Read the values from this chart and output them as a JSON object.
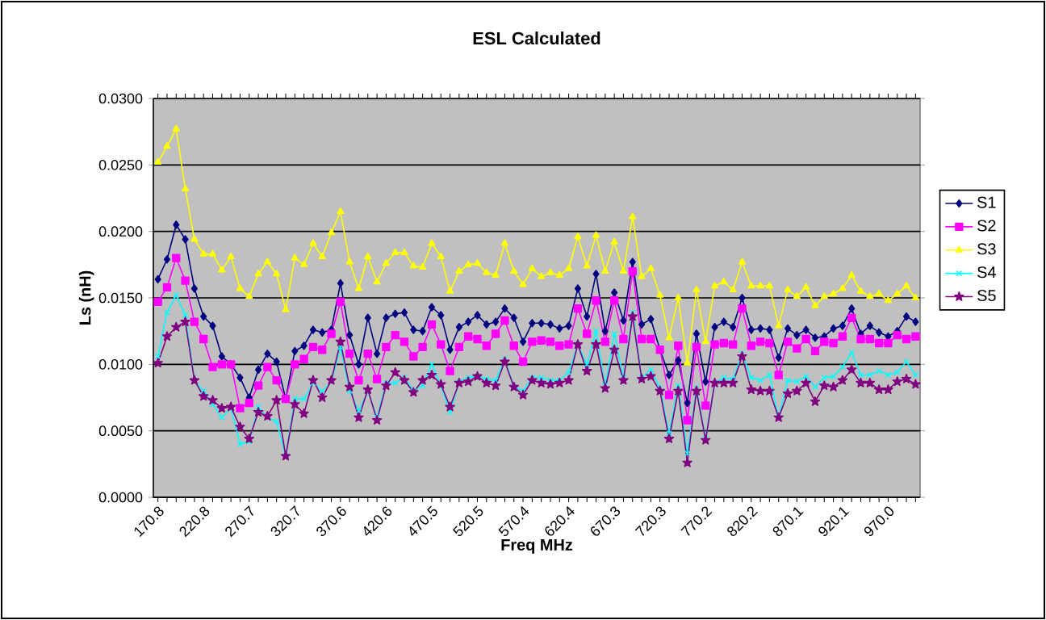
{
  "chart_data": {
    "type": "line",
    "title": "ESL Calculated",
    "xlabel": "Freq MHz",
    "ylabel": "Ls (nH)",
    "categories": [
      "170.8",
      null,
      null,
      null,
      null,
      "220.8",
      null,
      null,
      null,
      null,
      "270.7",
      null,
      null,
      null,
      null,
      "320.7",
      null,
      null,
      null,
      null,
      "370.6",
      null,
      null,
      null,
      null,
      "420.6",
      null,
      null,
      null,
      null,
      "470.5",
      null,
      null,
      null,
      null,
      "520.5",
      null,
      null,
      null,
      null,
      "570.4",
      null,
      null,
      null,
      null,
      "620.4",
      null,
      null,
      null,
      null,
      "670.3",
      null,
      null,
      null,
      null,
      "720.3",
      null,
      null,
      null,
      null,
      "770.2",
      null,
      null,
      null,
      null,
      "820.2",
      null,
      null,
      null,
      null,
      "870.1",
      null,
      null,
      null,
      null,
      "920.1",
      null,
      null,
      null,
      null,
      "970.0",
      null,
      null,
      null
    ],
    "ylim": [
      0,
      0.03
    ],
    "yticks": [
      {
        "value": 0,
        "label": "0.0000"
      },
      {
        "value": 0.005,
        "label": "0.0050"
      },
      {
        "value": 0.01,
        "label": "0.0100"
      },
      {
        "value": 0.015,
        "label": "0.0150"
      },
      {
        "value": 0.02,
        "label": "0.0200"
      },
      {
        "value": 0.025,
        "label": "0.0250"
      },
      {
        "value": 0.03,
        "label": "0.0300"
      }
    ],
    "grid": "y",
    "legend": "right",
    "series": [
      {
        "name": "S1",
        "color": "#000080",
        "marker": "diamond",
        "values": [
          0.0164,
          0.0179,
          0.0205,
          0.0194,
          0.0157,
          0.0136,
          0.0129,
          0.0106,
          0.01,
          0.009,
          0.0075,
          0.0096,
          0.0108,
          0.0102,
          0.0074,
          0.011,
          0.0114,
          0.0126,
          0.0124,
          0.0126,
          0.0161,
          0.0122,
          0.01,
          0.0135,
          0.0108,
          0.0135,
          0.0138,
          0.0139,
          0.0126,
          0.0125,
          0.0143,
          0.0137,
          0.0111,
          0.0128,
          0.0132,
          0.0137,
          0.013,
          0.0132,
          0.0142,
          0.0135,
          0.0117,
          0.0131,
          0.0131,
          0.013,
          0.0127,
          0.0129,
          0.0157,
          0.0136,
          0.0168,
          0.0125,
          0.0154,
          0.0133,
          0.0177,
          0.013,
          0.0134,
          0.0111,
          0.0092,
          0.0103,
          0.0071,
          0.0123,
          0.0087,
          0.0128,
          0.0132,
          0.0128,
          0.015,
          0.0126,
          0.0127,
          0.0126,
          0.0105,
          0.0127,
          0.0122,
          0.0126,
          0.012,
          0.0121,
          0.0127,
          0.0129,
          0.0142,
          0.0123,
          0.0129,
          0.0124,
          0.0121,
          0.0125,
          0.0136,
          0.0132
        ]
      },
      {
        "name": "S2",
        "color": "#ff00ff",
        "marker": "square",
        "values": [
          0.0147,
          0.0158,
          0.018,
          0.0163,
          0.0132,
          0.0119,
          0.0098,
          0.01,
          0.01,
          0.0067,
          0.0071,
          0.0084,
          0.0098,
          0.0088,
          0.0074,
          0.01,
          0.0104,
          0.0113,
          0.0111,
          0.0123,
          0.0147,
          0.0108,
          0.0088,
          0.0108,
          0.0089,
          0.0113,
          0.0122,
          0.0117,
          0.0106,
          0.0113,
          0.013,
          0.0115,
          0.0095,
          0.0113,
          0.0121,
          0.0119,
          0.0114,
          0.0123,
          0.0133,
          0.0114,
          0.0102,
          0.0117,
          0.0118,
          0.0117,
          0.0114,
          0.0115,
          0.0142,
          0.0123,
          0.0148,
          0.0117,
          0.0148,
          0.0119,
          0.017,
          0.0119,
          0.0119,
          0.0111,
          0.0077,
          0.0114,
          0.0058,
          0.0113,
          0.0069,
          0.0115,
          0.0116,
          0.0115,
          0.0142,
          0.0114,
          0.0117,
          0.0116,
          0.0092,
          0.0117,
          0.0112,
          0.0119,
          0.011,
          0.0117,
          0.0116,
          0.0121,
          0.0135,
          0.0119,
          0.0119,
          0.0116,
          0.0116,
          0.0122,
          0.0119,
          0.0121
        ]
      },
      {
        "name": "S3",
        "color": "#ffff00",
        "marker": "triangle",
        "values": [
          0.0252,
          0.0264,
          0.0277,
          0.0232,
          0.0194,
          0.0183,
          0.0183,
          0.0171,
          0.0181,
          0.0157,
          0.0151,
          0.0168,
          0.0177,
          0.0168,
          0.0141,
          0.018,
          0.0175,
          0.0191,
          0.0181,
          0.0199,
          0.0215,
          0.0177,
          0.0157,
          0.0181,
          0.0162,
          0.0176,
          0.0184,
          0.0184,
          0.0174,
          0.0173,
          0.0191,
          0.0181,
          0.0155,
          0.017,
          0.0175,
          0.0176,
          0.0169,
          0.0167,
          0.0191,
          0.017,
          0.016,
          0.0172,
          0.0166,
          0.0169,
          0.0167,
          0.0172,
          0.0196,
          0.0174,
          0.0197,
          0.017,
          0.0192,
          0.017,
          0.0211,
          0.0166,
          0.0172,
          0.0152,
          0.012,
          0.015,
          0.0101,
          0.0156,
          0.0117,
          0.0159,
          0.0162,
          0.0156,
          0.0177,
          0.0159,
          0.0159,
          0.0159,
          0.0129,
          0.0156,
          0.0151,
          0.0158,
          0.0144,
          0.0151,
          0.0153,
          0.0157,
          0.0167,
          0.0155,
          0.0151,
          0.0153,
          0.0148,
          0.0153,
          0.0159,
          0.015
        ]
      },
      {
        "name": "S4",
        "color": "#00ffff",
        "marker": "cross",
        "values": [
          0.0106,
          0.0139,
          0.0152,
          0.0137,
          0.0088,
          0.008,
          0.007,
          0.006,
          0.0067,
          0.004,
          0.0042,
          0.0068,
          0.006,
          0.0057,
          0.0031,
          0.0074,
          0.0074,
          0.0086,
          0.008,
          0.0087,
          0.0113,
          0.008,
          0.0065,
          0.008,
          0.006,
          0.0086,
          0.0086,
          0.009,
          0.008,
          0.0084,
          0.01,
          0.0084,
          0.0064,
          0.0087,
          0.009,
          0.0091,
          0.0089,
          0.0088,
          0.0104,
          0.0083,
          0.008,
          0.009,
          0.009,
          0.0088,
          0.0088,
          0.0094,
          0.0115,
          0.01,
          0.0125,
          0.0084,
          0.0123,
          0.009,
          0.0139,
          0.009,
          0.0096,
          0.0082,
          0.0048,
          0.0084,
          0.0033,
          0.0082,
          0.0044,
          0.0086,
          0.009,
          0.0089,
          0.0108,
          0.009,
          0.0088,
          0.0092,
          0.006,
          0.0088,
          0.0087,
          0.0091,
          0.0083,
          0.009,
          0.0091,
          0.0098,
          0.0109,
          0.0092,
          0.0092,
          0.0095,
          0.0092,
          0.0094,
          0.0102,
          0.0092
        ]
      },
      {
        "name": "S5",
        "color": "#800080",
        "marker": "star",
        "values": [
          0.0101,
          0.0121,
          0.0128,
          0.0132,
          0.0088,
          0.0076,
          0.0073,
          0.0067,
          0.0068,
          0.0053,
          0.0044,
          0.0064,
          0.0061,
          0.0073,
          0.0031,
          0.007,
          0.0063,
          0.0088,
          0.0075,
          0.0088,
          0.0117,
          0.0083,
          0.006,
          0.0081,
          0.0058,
          0.0084,
          0.0094,
          0.0088,
          0.0079,
          0.0088,
          0.0092,
          0.0085,
          0.0068,
          0.0086,
          0.0087,
          0.0091,
          0.0086,
          0.0084,
          0.0102,
          0.0083,
          0.0077,
          0.0088,
          0.0086,
          0.0085,
          0.0086,
          0.0088,
          0.0115,
          0.0095,
          0.0115,
          0.0082,
          0.0111,
          0.0088,
          0.0136,
          0.0089,
          0.0091,
          0.008,
          0.0044,
          0.008,
          0.0026,
          0.008,
          0.0043,
          0.0086,
          0.0086,
          0.0086,
          0.0106,
          0.0081,
          0.008,
          0.008,
          0.006,
          0.0078,
          0.008,
          0.0086,
          0.0072,
          0.0084,
          0.0083,
          0.0088,
          0.0096,
          0.0086,
          0.0086,
          0.0081,
          0.0081,
          0.0087,
          0.0089,
          0.0085
        ]
      }
    ]
  }
}
